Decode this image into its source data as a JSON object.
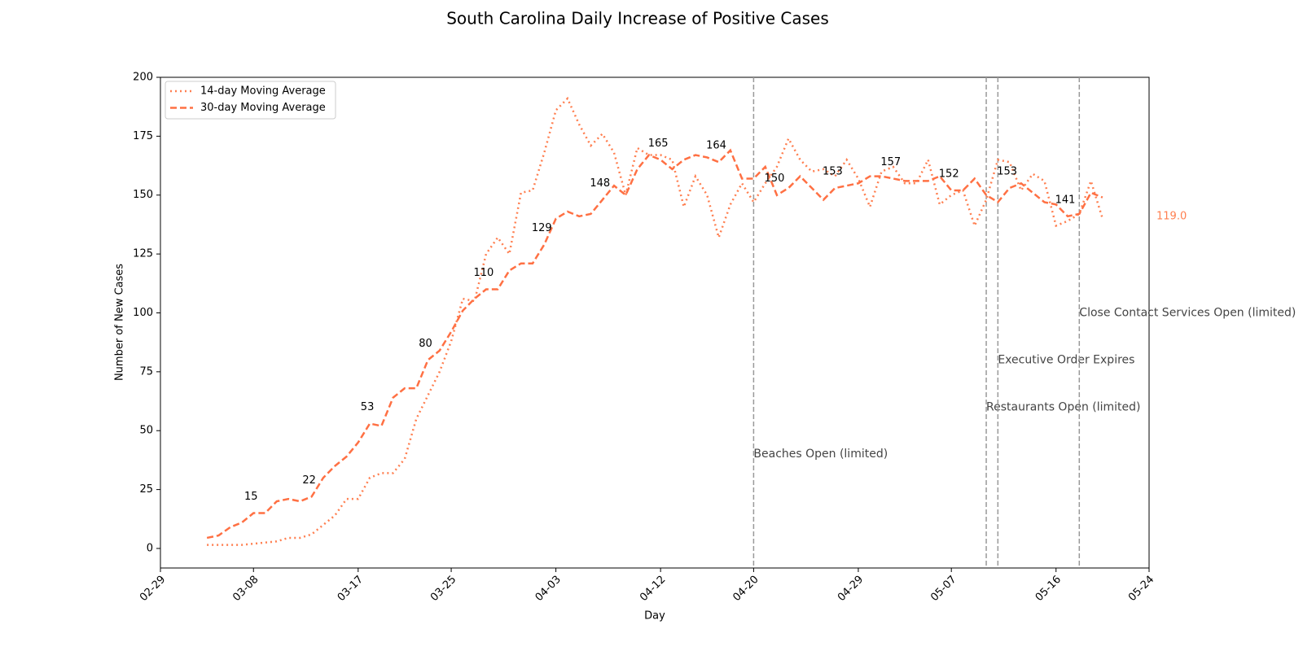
{
  "chart_data": {
    "type": "line",
    "title": "South Carolina Daily Increase of Positive Cases",
    "xlabel": "Day",
    "ylabel": "Number of New Cases",
    "x": [
      "03-04",
      "03-05",
      "03-06",
      "03-07",
      "03-08",
      "03-09",
      "03-10",
      "03-11",
      "03-12",
      "03-13",
      "03-14",
      "03-15",
      "03-16",
      "03-17",
      "03-18",
      "03-19",
      "03-20",
      "03-21",
      "03-22",
      "03-23",
      "03-24",
      "03-25",
      "03-26",
      "03-27",
      "03-28",
      "03-29",
      "03-30",
      "03-31",
      "04-01",
      "04-02",
      "04-03",
      "04-04",
      "04-05",
      "04-06",
      "04-07",
      "04-08",
      "04-09",
      "04-10",
      "04-11",
      "04-12",
      "04-13",
      "04-14",
      "04-15",
      "04-16",
      "04-17",
      "04-18",
      "04-19",
      "04-20",
      "04-21",
      "04-22",
      "04-23",
      "04-24",
      "04-25",
      "04-26",
      "04-27",
      "04-28",
      "04-29",
      "04-30",
      "05-01",
      "05-02",
      "05-03",
      "05-04",
      "05-05",
      "05-06",
      "05-07",
      "05-08",
      "05-09",
      "05-10",
      "05-11",
      "05-12",
      "05-13",
      "05-14",
      "05-15",
      "05-16",
      "05-17",
      "05-18",
      "05-19",
      "05-20"
    ],
    "series": [
      {
        "name": "14-day Moving Average",
        "color": "#ff7f50",
        "dash": "dotted",
        "values": [
          1.5,
          1.5,
          1.5,
          1.5,
          2,
          2.5,
          3,
          4.5,
          4.5,
          6,
          10,
          14,
          21,
          21,
          30,
          32,
          32,
          38,
          55,
          65,
          75,
          88,
          106,
          105,
          125,
          132,
          125,
          151,
          152,
          168,
          186,
          191,
          180,
          171,
          176,
          168,
          150,
          170,
          167,
          167,
          165,
          145,
          158,
          150,
          132,
          146,
          155,
          147,
          155,
          162,
          174,
          165,
          160,
          161,
          158,
          165,
          157,
          145,
          160,
          162,
          155,
          155,
          165,
          146,
          150,
          152,
          137,
          148,
          165,
          164,
          152,
          159,
          156,
          137,
          139,
          142,
          156,
          140
        ]
      },
      {
        "name": "30-day Moving Average",
        "color": "#ff7043",
        "dash": "dashed",
        "values": [
          4.5,
          5.5,
          9,
          11,
          15,
          15,
          20,
          21,
          20,
          22,
          30,
          35,
          39,
          45,
          53,
          52,
          64,
          68,
          68,
          80,
          84,
          92,
          101,
          106,
          110,
          110,
          118,
          121,
          121,
          129,
          140,
          143,
          141,
          142,
          148,
          154,
          150,
          161,
          167,
          165,
          161,
          165,
          167,
          166,
          164,
          169,
          157,
          157,
          162,
          150,
          153,
          158,
          153,
          148,
          153,
          154,
          155,
          158,
          158,
          157,
          156,
          156,
          156,
          158,
          152,
          152,
          157,
          150,
          147,
          153,
          155,
          151,
          147,
          146,
          141,
          142,
          151,
          149
        ],
        "value_labels": [
          null,
          null,
          null,
          null,
          "15",
          null,
          null,
          null,
          null,
          "22",
          null,
          null,
          null,
          null,
          "53",
          null,
          null,
          null,
          null,
          "80",
          null,
          null,
          null,
          null,
          "110",
          null,
          null,
          null,
          null,
          "129",
          null,
          null,
          null,
          null,
          "148",
          null,
          null,
          null,
          null,
          "165",
          null,
          null,
          null,
          null,
          "164",
          null,
          null,
          null,
          null,
          "150",
          null,
          null,
          null,
          null,
          "153",
          null,
          null,
          null,
          null,
          "157",
          null,
          null,
          null,
          null,
          "152",
          null,
          null,
          null,
          null,
          "153",
          null,
          null,
          null,
          null,
          "141",
          null,
          null,
          null
        ]
      }
    ],
    "xlim": [
      "02-29",
      "05-24"
    ],
    "xticks": [
      "02-29",
      "03-08",
      "03-17",
      "03-25",
      "04-03",
      "04-12",
      "04-20",
      "04-29",
      "05-07",
      "05-16",
      "05-24"
    ],
    "ylim": [
      -8.3,
      200
    ],
    "yticks": [
      0,
      25,
      50,
      75,
      100,
      125,
      150,
      175,
      200
    ],
    "legend": "upper left",
    "events": [
      {
        "x": "04-20",
        "label": "Beaches Open (limited)",
        "y": 40
      },
      {
        "x": "05-10",
        "label": "Restaurants Open (limited)",
        "y": 60
      },
      {
        "x": "05-11",
        "label": "Executive Order Expires",
        "y": 80
      },
      {
        "x": "05-18",
        "label": "Close Contact Services Open (limited)",
        "y": 100
      }
    ],
    "side_note": {
      "text": "119.0",
      "x": "05-24",
      "y": 141,
      "color": "#ff7f50"
    }
  }
}
